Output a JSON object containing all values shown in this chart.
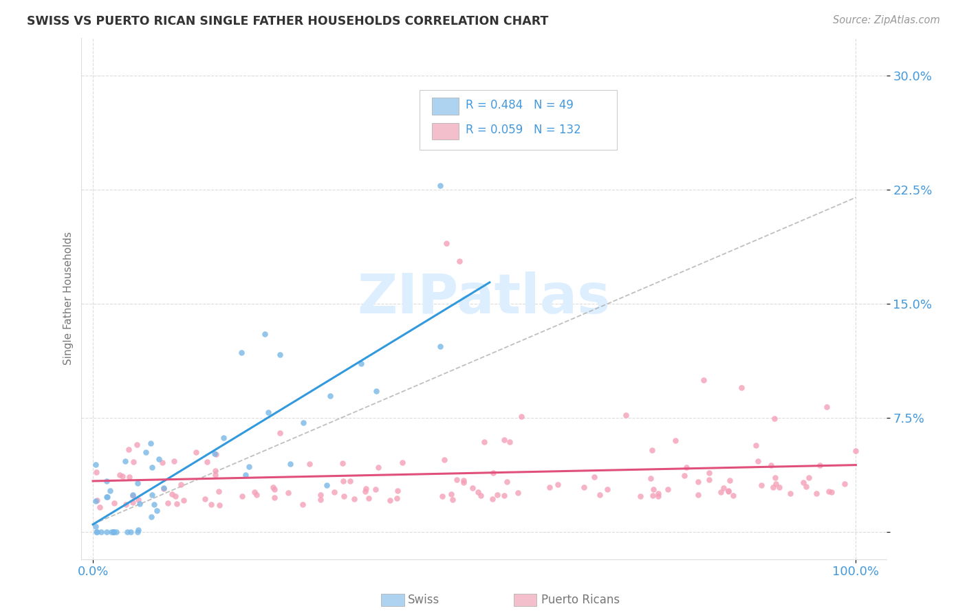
{
  "title": "SWISS VS PUERTO RICAN SINGLE FATHER HOUSEHOLDS CORRELATION CHART",
  "source": "Source: ZipAtlas.com",
  "ylabel": "Single Father Households",
  "watermark_zip": "ZIP",
  "watermark_atlas": "atlas",
  "swiss_R": 0.484,
  "swiss_N": 49,
  "pr_R": 0.059,
  "pr_N": 132,
  "swiss_dot_color": "#7ab8e8",
  "swiss_legend_fill": "#add3f0",
  "pr_dot_color": "#f4a0b8",
  "pr_legend_fill": "#f4bfcc",
  "swiss_line_color": "#3399dd",
  "pr_line_color": "#e0507a",
  "diag_line_color": "#aaaaaa",
  "background_color": "#ffffff",
  "grid_color": "#cccccc",
  "title_color": "#333333",
  "axis_tick_color": "#4499dd",
  "label_color": "#777777",
  "legend_text_color": "#4499dd",
  "source_color": "#999999",
  "watermark_color": "#ddeeff"
}
